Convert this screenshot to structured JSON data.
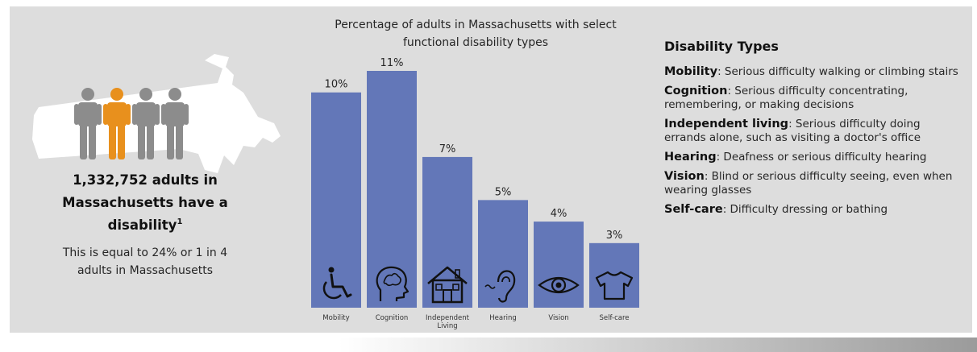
{
  "colors": {
    "panel": "#dddddd",
    "bar": "#6377b8",
    "person_gray": "#8c8c8c",
    "person_orange": "#e8901d",
    "map": "#ffffff"
  },
  "headline": {
    "line1": "1,332,752 adults in",
    "line2": "Massachusetts have a",
    "line3": "disability",
    "footnote": "1"
  },
  "subtext": {
    "line1": "This is equal to 24% or 1 in 4",
    "line2": "adults in Massachusetts"
  },
  "people_icons": [
    "person-icon",
    "person-icon-highlighted",
    "person-icon",
    "person-icon"
  ],
  "chart_data": {
    "type": "bar",
    "title_lines": [
      "Percentage of adults in Massachusetts with select",
      "functional disability types"
    ],
    "categories": [
      "Mobility",
      "Cognition",
      "Independent Living",
      "Hearing",
      "Vision",
      "Self-care"
    ],
    "category_label_lines": [
      [
        "Mobility"
      ],
      [
        "Cognition"
      ],
      [
        "Independent",
        "Living"
      ],
      [
        "Hearing"
      ],
      [
        "Vision"
      ],
      [
        "Self-care"
      ]
    ],
    "values": [
      10,
      11,
      7,
      5,
      4,
      3
    ],
    "value_labels": [
      "10%",
      "11%",
      "7%",
      "5%",
      "4%",
      "3%"
    ],
    "icons": [
      "wheelchair-icon",
      "head-brain-icon",
      "house-icon",
      "ear-icon",
      "eye-icon",
      "shirt-icon"
    ],
    "ylim": [
      0,
      11
    ],
    "grid": false,
    "xlabel": "",
    "ylabel": ""
  },
  "disability_types": {
    "heading": "Disability Types",
    "items": [
      {
        "term": "Mobility",
        "definition": ": Serious difficulty walking or climbing stairs"
      },
      {
        "term": "Cognition",
        "definition": ": Serious difficulty concentrating, remembering, or making decisions"
      },
      {
        "term": "Independent living",
        "definition": ": Serious difficulty doing errands alone, such as visiting a doctor's office"
      },
      {
        "term": "Hearing",
        "definition": ": Deafness or serious difficulty hearing"
      },
      {
        "term": "Vision",
        "definition": ": Blind or serious difficulty seeing, even when wearing glasses"
      },
      {
        "term": "Self-care",
        "definition": ": Difficulty dressing or bathing"
      }
    ]
  }
}
